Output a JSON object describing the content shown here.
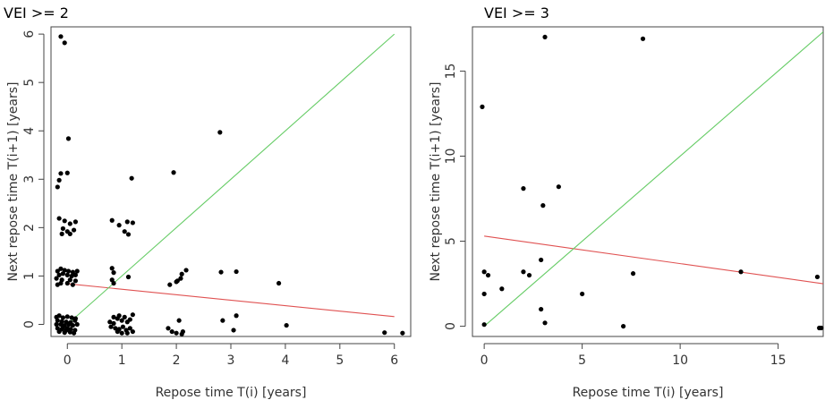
{
  "chart_data": [
    {
      "type": "scatter",
      "title": "VEI >= 2",
      "xlabel": "Repose time T(i) [years]",
      "ylabel": "Next repose time T(i+1) [years]",
      "xlim": [
        -0.3,
        6.3
      ],
      "ylim": [
        -0.25,
        6.15
      ],
      "xticks": [
        "0",
        "1",
        "2",
        "3",
        "4",
        "5",
        "6"
      ],
      "yticks": [
        "0",
        "1",
        "2",
        "3",
        "4",
        "5",
        "6"
      ],
      "grid": false,
      "points": [
        [
          -0.12,
          5.95
        ],
        [
          -0.05,
          5.82
        ],
        [
          0.02,
          3.84
        ],
        [
          0.0,
          3.13
        ],
        [
          -0.12,
          3.12
        ],
        [
          -0.15,
          2.98
        ],
        [
          -0.18,
          2.84
        ],
        [
          -0.15,
          2.19
        ],
        [
          -0.05,
          2.14
        ],
        [
          0.05,
          2.08
        ],
        [
          0.15,
          2.12
        ],
        [
          -0.08,
          1.98
        ],
        [
          0.0,
          1.92
        ],
        [
          0.12,
          1.95
        ],
        [
          -0.1,
          1.87
        ],
        [
          0.05,
          1.87
        ],
        [
          -0.18,
          1.1
        ],
        [
          -0.12,
          1.15
        ],
        [
          -0.05,
          1.12
        ],
        [
          0.02,
          1.1
        ],
        [
          0.1,
          1.08
        ],
        [
          0.18,
          1.1
        ],
        [
          -0.15,
          1.02
        ],
        [
          -0.08,
          1.05
        ],
        [
          0.0,
          1.02
        ],
        [
          0.08,
          1.0
        ],
        [
          0.15,
          1.02
        ],
        [
          -0.2,
          0.95
        ],
        [
          -0.1,
          0.92
        ],
        [
          0.05,
          0.92
        ],
        [
          0.15,
          0.9
        ],
        [
          -0.12,
          0.85
        ],
        [
          0.0,
          0.85
        ],
        [
          -0.18,
          0.82
        ],
        [
          0.1,
          0.82
        ],
        [
          -0.2,
          0.15
        ],
        [
          -0.15,
          0.18
        ],
        [
          -0.08,
          0.14
        ],
        [
          0.0,
          0.16
        ],
        [
          0.08,
          0.14
        ],
        [
          0.15,
          0.12
        ],
        [
          -0.18,
          0.08
        ],
        [
          -0.1,
          0.06
        ],
        [
          -0.02,
          0.05
        ],
        [
          0.06,
          0.04
        ],
        [
          0.14,
          0.08
        ],
        [
          -0.2,
          0.0
        ],
        [
          -0.12,
          0.0
        ],
        [
          -0.05,
          -0.02
        ],
        [
          0.03,
          0.0
        ],
        [
          0.1,
          -0.02
        ],
        [
          0.18,
          0.0
        ],
        [
          -0.18,
          -0.08
        ],
        [
          -0.1,
          -0.1
        ],
        [
          -0.02,
          -0.12
        ],
        [
          0.06,
          -0.1
        ],
        [
          0.14,
          -0.12
        ],
        [
          -0.15,
          -0.15
        ],
        [
          -0.05,
          -0.17
        ],
        [
          0.05,
          -0.16
        ],
        [
          0.12,
          -0.18
        ],
        [
          -0.08,
          -0.06
        ],
        [
          0.0,
          -0.08
        ],
        [
          0.82,
          2.15
        ],
        [
          0.95,
          2.05
        ],
        [
          1.1,
          2.12
        ],
        [
          1.2,
          2.1
        ],
        [
          1.05,
          1.92
        ],
        [
          1.12,
          1.86
        ],
        [
          1.18,
          3.02
        ],
        [
          0.82,
          1.16
        ],
        [
          0.85,
          1.07
        ],
        [
          0.82,
          0.92
        ],
        [
          0.85,
          0.85
        ],
        [
          1.12,
          0.98
        ],
        [
          0.78,
          0.05
        ],
        [
          0.85,
          0.02
        ],
        [
          0.92,
          0.12
        ],
        [
          0.95,
          0.18
        ],
        [
          1.0,
          0.08
        ],
        [
          1.05,
          0.15
        ],
        [
          1.1,
          0.05
        ],
        [
          1.15,
          0.1
        ],
        [
          1.2,
          0.2
        ],
        [
          0.8,
          -0.05
        ],
        [
          0.88,
          -0.08
        ],
        [
          0.95,
          -0.1
        ],
        [
          1.02,
          -0.05
        ],
        [
          1.08,
          -0.12
        ],
        [
          1.15,
          -0.08
        ],
        [
          1.2,
          -0.15
        ],
        [
          0.92,
          -0.15
        ],
        [
          1.0,
          -0.18
        ],
        [
          1.1,
          -0.18
        ],
        [
          0.85,
          0.15
        ],
        [
          1.95,
          3.14
        ],
        [
          1.88,
          0.82
        ],
        [
          2.02,
          0.9
        ],
        [
          2.08,
          0.95
        ],
        [
          2.1,
          1.04
        ],
        [
          2.18,
          1.12
        ],
        [
          2.0,
          0.88
        ],
        [
          1.85,
          -0.08
        ],
        [
          1.92,
          -0.15
        ],
        [
          2.0,
          -0.18
        ],
        [
          2.05,
          0.08
        ],
        [
          2.12,
          -0.15
        ],
        [
          2.1,
          -0.2
        ],
        [
          2.8,
          3.97
        ],
        [
          2.82,
          1.08
        ],
        [
          3.1,
          1.09
        ],
        [
          2.85,
          0.08
        ],
        [
          3.05,
          -0.12
        ],
        [
          3.1,
          0.18
        ],
        [
          3.88,
          0.85
        ],
        [
          4.02,
          -0.02
        ],
        [
          5.82,
          -0.17
        ],
        [
          6.15,
          -0.18
        ]
      ],
      "lines": [
        {
          "color": "#e05252",
          "from": [
            0.0,
            0.84
          ],
          "to": [
            6.0,
            0.16
          ]
        },
        {
          "color": "#66cc66",
          "from": [
            0.0,
            0.0
          ],
          "to": [
            6.0,
            6.0
          ]
        }
      ]
    },
    {
      "type": "scatter",
      "title": "VEI >= 3",
      "xlabel": "Repose time T(i) [years]",
      "ylabel": "Next repose time T(i+1) [years]",
      "xlim": [
        -0.6,
        17.3
      ],
      "ylim": [
        -0.6,
        17.6
      ],
      "xticks": [
        "0",
        "5",
        "10",
        "15"
      ],
      "yticks": [
        "0",
        "5",
        "10",
        "15"
      ],
      "grid": false,
      "points": [
        [
          -0.1,
          12.9
        ],
        [
          3.1,
          17.0
        ],
        [
          8.1,
          16.9
        ],
        [
          2.0,
          8.1
        ],
        [
          3.8,
          8.2
        ],
        [
          3.0,
          7.1
        ],
        [
          2.9,
          3.9
        ],
        [
          0.0,
          3.2
        ],
        [
          0.2,
          3.0
        ],
        [
          2.0,
          3.2
        ],
        [
          2.3,
          3.0
        ],
        [
          7.6,
          3.1
        ],
        [
          13.1,
          3.2
        ],
        [
          17.0,
          2.9
        ],
        [
          0.9,
          2.2
        ],
        [
          0.0,
          1.9
        ],
        [
          5.0,
          1.9
        ],
        [
          2.9,
          1.0
        ],
        [
          3.1,
          0.2
        ],
        [
          0.0,
          0.1
        ],
        [
          7.1,
          0.0
        ],
        [
          17.1,
          -0.1
        ],
        [
          17.2,
          -0.1
        ]
      ],
      "lines": [
        {
          "color": "#e05252",
          "from": [
            0.0,
            5.3
          ],
          "to": [
            17.3,
            2.5
          ]
        },
        {
          "color": "#66cc66",
          "from": [
            0.0,
            0.0
          ],
          "to": [
            17.3,
            17.3
          ]
        }
      ]
    }
  ]
}
